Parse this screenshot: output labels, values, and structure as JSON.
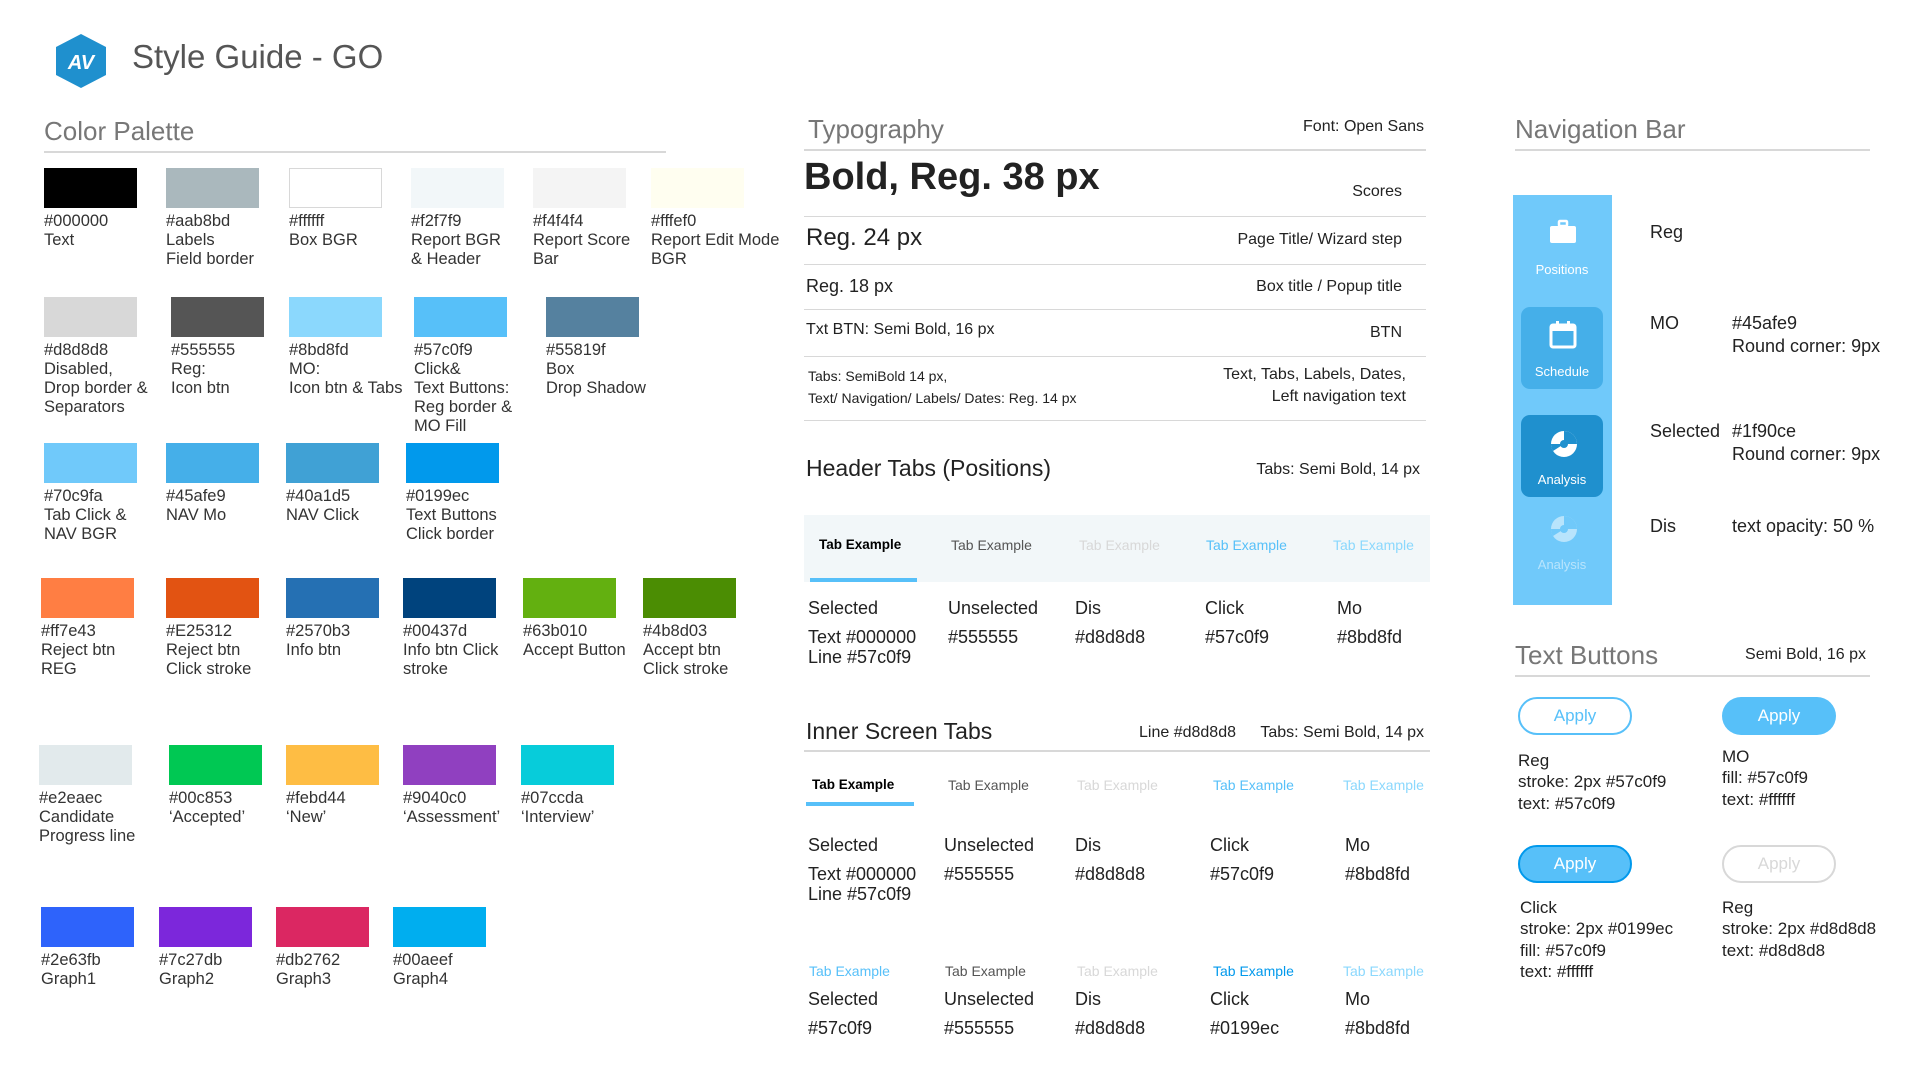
{
  "header": {
    "title": "Style Guide - GO",
    "logo_text": "AV",
    "logo_color": "#1f90ce"
  },
  "color_palette": {
    "title": "Color Palette",
    "swatches": [
      {
        "hex": "#000000",
        "color": "#000000",
        "desc1": "Text",
        "desc2": "",
        "desc3": ""
      },
      {
        "hex": "#aab8bd",
        "color": "#aab8bd",
        "desc1": "Labels",
        "desc2": "Field border",
        "desc3": ""
      },
      {
        "hex": "#ffffff",
        "color": "#ffffff",
        "desc1": "Box BGR",
        "desc2": "",
        "desc3": ""
      },
      {
        "hex": "#f2f7f9",
        "color": "#f2f7f9",
        "desc1": "Report BGR",
        "desc2": "& Header",
        "desc3": ""
      },
      {
        "hex": "#f4f4f4",
        "color": "#f4f4f4",
        "desc1": "Report Score",
        "desc2": "Bar",
        "desc3": ""
      },
      {
        "hex": "#fffef0",
        "color": "#fffef0",
        "desc1": "Report Edit Mode",
        "desc2": "BGR",
        "desc3": ""
      },
      {
        "hex": "#d8d8d8",
        "color": "#d8d8d8",
        "desc1": "Disabled,",
        "desc2": "Drop border &",
        "desc3": "Separators"
      },
      {
        "hex": "#555555",
        "color": "#555555",
        "desc1": "Reg:",
        "desc2": "Icon btn",
        "desc3": ""
      },
      {
        "hex": "#8bd8fd",
        "color": "#8bd8fd",
        "desc1": "MO:",
        "desc2": "Icon btn & Tabs",
        "desc3": ""
      },
      {
        "hex": "#57c0f9",
        "color": "#57c0f9",
        "desc1": "Click&",
        "desc2": "Text Buttons:",
        "desc3": "Reg border &",
        "desc4": "MO Fill"
      },
      {
        "hex": "#55819f",
        "color": "#55819f",
        "desc1": "Box",
        "desc2": "Drop Shadow",
        "desc3": ""
      },
      {
        "hex": "#70c9fa",
        "color": "#70c9fa",
        "desc1": "Tab Click &",
        "desc2": "NAV BGR",
        "desc3": ""
      },
      {
        "hex": "#45afe9",
        "color": "#45afe9",
        "desc1": "NAV Mo",
        "desc2": "",
        "desc3": ""
      },
      {
        "hex": "#40a1d5",
        "color": "#40a1d5",
        "desc1": "NAV Click",
        "desc2": "",
        "desc3": ""
      },
      {
        "hex": "#0199ec",
        "color": "#0199ec",
        "desc1": "Text Buttons",
        "desc2": "Click border",
        "desc3": ""
      },
      {
        "hex": "#ff7e43",
        "color": "#ff7e43",
        "desc1": "Reject btn",
        "desc2": "REG",
        "desc3": ""
      },
      {
        "hex": "#E25312",
        "color": "#e25312",
        "desc1": "Reject btn",
        "desc2": "Click stroke",
        "desc3": ""
      },
      {
        "hex": "#2570b3",
        "color": "#2570b3",
        "desc1": "Info btn",
        "desc2": "",
        "desc3": ""
      },
      {
        "hex": "#00437d",
        "color": "#00437d",
        "desc1": "Info btn Click",
        "desc2": "stroke",
        "desc3": ""
      },
      {
        "hex": "#63b010",
        "color": "#63b010",
        "desc1": "Accept Button",
        "desc2": "",
        "desc3": ""
      },
      {
        "hex": "#4b8d03",
        "color": "#4b8d03",
        "desc1": "Accept btn",
        "desc2": "Click stroke",
        "desc3": ""
      },
      {
        "hex": "#e2eaec",
        "color": "#e2eaec",
        "desc1": "Candidate",
        "desc2": "Progress line",
        "desc3": ""
      },
      {
        "hex": "#00c853",
        "color": "#00c853",
        "desc1": "‘Accepted’",
        "desc2": "",
        "desc3": ""
      },
      {
        "hex": "#febd44",
        "color": "#febd44",
        "desc1": "‘New’",
        "desc2": "",
        "desc3": ""
      },
      {
        "hex": "#9040c0",
        "color": "#9040c0",
        "desc1": "‘Assessment’",
        "desc2": "",
        "desc3": ""
      },
      {
        "hex": "#07ccda",
        "color": "#07ccda",
        "desc1": "‘Interview’",
        "desc2": "",
        "desc3": ""
      },
      {
        "hex": "#2e63fb",
        "color": "#2e63fb",
        "desc1": "Graph1",
        "desc2": "",
        "desc3": ""
      },
      {
        "hex": "#7c27db",
        "color": "#7c27db",
        "desc1": "Graph2",
        "desc2": "",
        "desc3": ""
      },
      {
        "hex": "#db2762",
        "color": "#db2762",
        "desc1": "Graph3",
        "desc2": "",
        "desc3": ""
      },
      {
        "hex": "#00aeef",
        "color": "#00aeef",
        "desc1": "Graph4",
        "desc2": "",
        "desc3": ""
      }
    ]
  },
  "typography": {
    "title": "Typography",
    "font_note": "Font: Open Sans",
    "bold38": "Bold, Reg. 38 px",
    "bold38_use": "Scores",
    "reg24": "Reg. 24 px",
    "reg24_use": "Page Title/ Wizard step",
    "reg18": "Reg. 18 px",
    "reg18_use": "Box title / Popup title",
    "txtbtn": "Txt BTN: Semi Bold, 16 px",
    "txtbtn_use": "BTN",
    "tabs1": "Tabs: SemiBold 14 px,",
    "tabs2": "Text/ Navigation/ Labels/ Dates: Reg. 14 px",
    "tabs_use1": "Text, Tabs, Labels, Dates,",
    "tabs_use2": "Left navigation text"
  },
  "header_tabs": {
    "title": "Header Tabs (Positions)",
    "note": "Tabs: Semi Bold, 14 px",
    "tab_label": "Tab Example",
    "states": [
      {
        "name": "Selected",
        "line1": "Text #000000",
        "line2": "Line #57c0f9"
      },
      {
        "name": "Unselected",
        "line1": "#555555",
        "line2": ""
      },
      {
        "name": "Dis",
        "line1": "#d8d8d8",
        "line2": ""
      },
      {
        "name": "Click",
        "line1": "#57c0f9",
        "line2": ""
      },
      {
        "name": "Mo",
        "line1": "#8bd8fd",
        "line2": ""
      }
    ]
  },
  "inner_tabs": {
    "title": "Inner Screen Tabs",
    "line_note": "Line #d8d8d8",
    "note": "Tabs: Semi Bold, 14 px",
    "tab_label": "Tab Example",
    "states": [
      {
        "name": "Selected",
        "line1": "Text #000000",
        "line2": "Line #57c0f9"
      },
      {
        "name": "Unselected",
        "line1": "#555555",
        "line2": ""
      },
      {
        "name": "Dis",
        "line1": "#d8d8d8",
        "line2": ""
      },
      {
        "name": "Click",
        "line1": "#57c0f9",
        "line2": ""
      },
      {
        "name": "Mo",
        "line1": "#8bd8fd",
        "line2": ""
      }
    ],
    "states2": [
      {
        "name": "Selected",
        "line1": "#57c0f9"
      },
      {
        "name": "Unselected",
        "line1": "#555555"
      },
      {
        "name": "Dis",
        "line1": "#d8d8d8"
      },
      {
        "name": "Click",
        "line1": "#0199ec"
      },
      {
        "name": "Mo",
        "line1": "#8bd8fd"
      }
    ]
  },
  "navigation_bar": {
    "title": "Navigation Bar",
    "items": [
      {
        "label": "Positions",
        "icon": "briefcase-icon"
      },
      {
        "label": "Schedule",
        "icon": "calendar-icon"
      },
      {
        "label": "Analysis",
        "icon": "pie-chart-icon"
      },
      {
        "label": "Analysis",
        "icon": "pie-chart-icon"
      }
    ],
    "states": [
      {
        "name": "Reg",
        "desc1": "",
        "desc2": ""
      },
      {
        "name": "MO",
        "desc1": "#45afe9",
        "desc2": "Round corner: 9px"
      },
      {
        "name": "Selected",
        "desc1": "#1f90ce",
        "desc2": "Round corner: 9px"
      },
      {
        "name": "Dis",
        "desc1": "text opacity: 50 %",
        "desc2": ""
      }
    ],
    "colors": {
      "bg": "#70c9fa",
      "mo": "#45afe9",
      "selected": "#1f90ce"
    }
  },
  "text_buttons": {
    "title": "Text Buttons",
    "note": "Semi Bold, 16 px",
    "label": "Apply",
    "buttons": [
      {
        "l1": "Reg",
        "l2": "stroke: 2px #57c0f9",
        "l3": "text: #57c0f9",
        "l4": ""
      },
      {
        "l1": "MO",
        "l2": "fill:  #57c0f9",
        "l3": "text: #ffffff",
        "l4": ""
      },
      {
        "l1": "Click",
        "l2": "stroke: 2px #0199ec",
        "l3": "fill: #57c0f9",
        "l4": "text: #ffffff"
      },
      {
        "l1": "Reg",
        "l2": "stroke: 2px #d8d8d8",
        "l3": "text: #d8d8d8",
        "l4": ""
      }
    ]
  }
}
